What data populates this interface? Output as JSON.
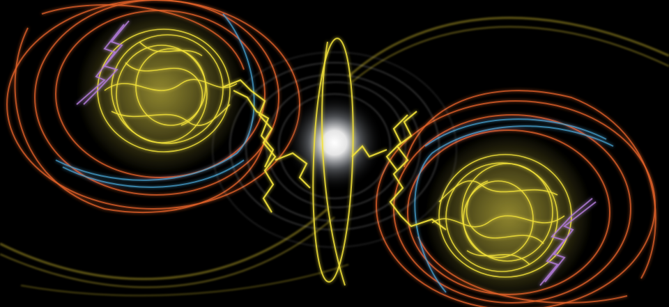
{
  "artwork": {
    "background_color": "#000000",
    "palette": {
      "yellow": "#f2e23a",
      "orange": "#e8642a",
      "cyan": "#4aa8d8",
      "violet": "#b07ad8",
      "white": "#ffffff",
      "olive": "#b8a628"
    },
    "elements": [
      "left-vortex",
      "right-vortex",
      "central-glow",
      "connecting-tendrils",
      "sweeping-arcs"
    ]
  }
}
